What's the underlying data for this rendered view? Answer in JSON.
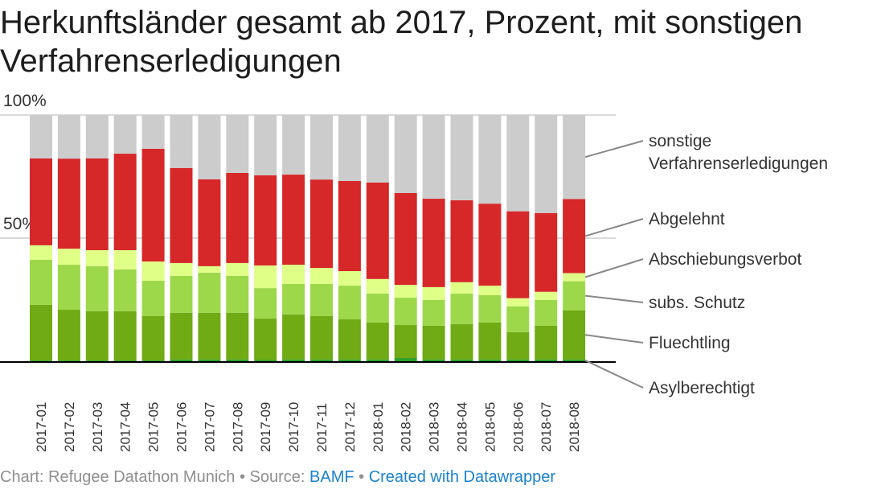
{
  "title": "Herkunftsländer gesamt ab 2017, Prozent, mit sonstigen Verfahrenserledigungen",
  "footer": {
    "chart_credit": "Chart: Refugee Datathon Munich",
    "separator": " • ",
    "source_prefix": "Source: ",
    "source_link": "BAMF",
    "created_with": "Created with Datawrapper"
  },
  "chart_data": {
    "type": "bar",
    "stacked": true,
    "title": "Herkunftsländer gesamt ab 2017, Prozent, mit sonstigen Verfahrenserledigungen",
    "xlabel": "",
    "ylabel": "",
    "ylim": [
      0,
      100
    ],
    "yticks": [
      {
        "value": 50,
        "label": "50%"
      },
      {
        "value": 100,
        "label": "100%"
      }
    ],
    "grid": true,
    "legend": "right (direct labels)",
    "categories": [
      "2017-01",
      "2017-02",
      "2017-03",
      "2017-04",
      "2017-05",
      "2017-06",
      "2017-07",
      "2017-08",
      "2017-09",
      "2017-10",
      "2017-11",
      "2017-12",
      "2018-01",
      "2018-02",
      "2018-03",
      "2018-04",
      "2018-05",
      "2018-06",
      "2018-07",
      "2018-08"
    ],
    "series": [
      {
        "name": "Asylberechtigt",
        "color": "#2ca02c",
        "values": [
          0.3,
          0.3,
          0.3,
          0.3,
          0.3,
          0.7,
          0.7,
          0.7,
          0.5,
          0.7,
          0.7,
          0.7,
          0.7,
          1.3,
          0.7,
          0.7,
          0.7,
          0.7,
          0.7,
          0.7
        ]
      },
      {
        "name": "Fluechtling",
        "color": "#70aa14",
        "values": [
          22.6,
          20.6,
          20.0,
          20.0,
          18.0,
          19.0,
          19.0,
          19.0,
          16.8,
          18.3,
          17.6,
          16.3,
          15.0,
          13.4,
          13.7,
          14.4,
          15.0,
          11.1,
          13.7,
          20.0
        ]
      },
      {
        "name": "subs. Schutz",
        "color": "#9dd84a",
        "values": [
          18.3,
          18.3,
          18.3,
          17.0,
          14.4,
          15.0,
          16.3,
          15.0,
          12.4,
          12.4,
          13.1,
          13.7,
          11.8,
          11.1,
          10.5,
          12.4,
          11.1,
          10.5,
          10.5,
          11.8
        ]
      },
      {
        "name": "Abschiebungsverbot",
        "color": "#dfff86",
        "values": [
          5.9,
          6.5,
          6.5,
          7.8,
          7.8,
          5.2,
          2.6,
          5.2,
          9.2,
          7.8,
          6.5,
          5.9,
          5.9,
          5.2,
          5.2,
          4.6,
          3.9,
          3.3,
          3.3,
          3.3
        ]
      },
      {
        "name": "Abgelehnt",
        "color": "#d62729",
        "values": [
          35.3,
          36.6,
          37.3,
          39.2,
          45.8,
          38.6,
          35.3,
          36.6,
          36.6,
          36.6,
          35.9,
          36.6,
          39.2,
          37.3,
          35.9,
          33.3,
          33.3,
          35.3,
          32.0,
          30.1
        ]
      },
      {
        "name": "sonstige Verfahrenserledigungen",
        "color": "#cccccc",
        "values": [
          17.6,
          17.7,
          17.6,
          15.7,
          13.7,
          21.5,
          26.1,
          23.5,
          24.5,
          24.2,
          26.2,
          26.8,
          27.4,
          31.7,
          34.0,
          34.6,
          36.0,
          39.1,
          39.8,
          34.1
        ]
      }
    ],
    "labels_order_top_to_bottom": [
      "sonstige Verfahrenserledigungen",
      "Abgelehnt",
      "Abschiebungsverbot",
      "subs. Schutz",
      "Fluechtling",
      "Asylberechtigt"
    ],
    "label_lines": [
      [
        "sonstige",
        "Verfahrenserledigungen"
      ],
      [
        "Abgelehnt"
      ],
      [
        "Abschiebungsverbot"
      ],
      [
        "subs. Schutz"
      ],
      [
        "Fluechtling"
      ],
      [
        "Asylberechtigt"
      ]
    ]
  }
}
